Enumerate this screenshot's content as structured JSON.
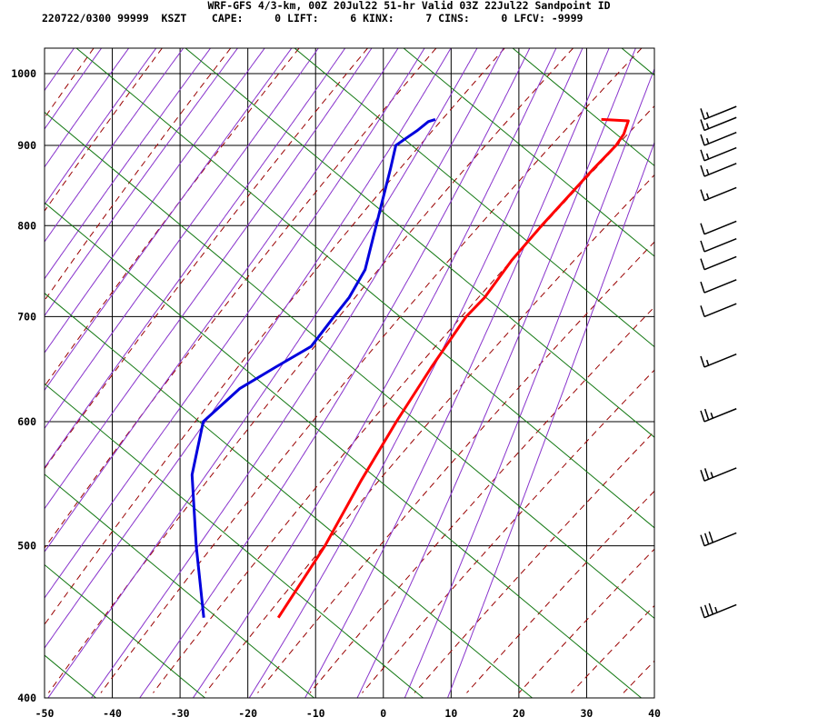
{
  "header": {
    "title": "WRF-GFS 4/3-km, 00Z 20Jul22 51-hr Valid 03Z 22Jul22 Sandpoint ID",
    "stats_line": "220722/0300 99999  KSZT    CAPE:     0 LIFT:     6 KINX:     7 CINS:     0 LFCV: -9999"
  },
  "chart_data": {
    "type": "skew-t",
    "xlim": [
      -50,
      40
    ],
    "plim": [
      1038,
      400
    ],
    "x_ticks": [
      -50,
      -40,
      -30,
      -20,
      -10,
      0,
      10,
      20,
      30,
      40
    ],
    "p_ticks": [
      400,
      500,
      600,
      700,
      800,
      900,
      1000
    ],
    "series": [
      {
        "color": "#ff0000",
        "points": [
          [
            935,
            25
          ],
          [
            933,
            29
          ],
          [
            915,
            28.5
          ],
          [
            900,
            27.5
          ],
          [
            870,
            24.5
          ],
          [
            800,
            17.5
          ],
          [
            760,
            13.5
          ],
          [
            720,
            10
          ],
          [
            700,
            7.5
          ],
          [
            650,
            3
          ],
          [
            600,
            -1.5
          ],
          [
            550,
            -6
          ],
          [
            500,
            -10.5
          ],
          [
            450,
            -16.5
          ]
        ]
      },
      {
        "color": "#0000dd",
        "points": [
          [
            935,
            0.5
          ],
          [
            932,
            -0.5
          ],
          [
            920,
            -2
          ],
          [
            910,
            -3.5
          ],
          [
            900,
            -5
          ],
          [
            870,
            -5.5
          ],
          [
            820,
            -6.5
          ],
          [
            750,
            -8
          ],
          [
            720,
            -10
          ],
          [
            700,
            -12
          ],
          [
            670,
            -15
          ],
          [
            650,
            -20
          ],
          [
            630,
            -25
          ],
          [
            600,
            -30
          ],
          [
            555,
            -31
          ],
          [
            500,
            -29.5
          ],
          [
            450,
            -27.5
          ]
        ]
      }
    ],
    "wind_barbs": [
      {
        "p": 450,
        "knots": 35
      },
      {
        "p": 500,
        "knots": 30
      },
      {
        "p": 550,
        "knots": 25
      },
      {
        "p": 600,
        "knots": 25
      },
      {
        "p": 650,
        "knots": 15
      },
      {
        "p": 700,
        "knots": 10
      },
      {
        "p": 725,
        "knots": 10
      },
      {
        "p": 750,
        "knots": 10
      },
      {
        "p": 770,
        "knots": 10
      },
      {
        "p": 790,
        "knots": 10
      },
      {
        "p": 830,
        "knots": 15
      },
      {
        "p": 860,
        "knots": 15
      },
      {
        "p": 880,
        "knots": 15
      },
      {
        "p": 900,
        "knots": 15
      },
      {
        "p": 920,
        "knots": 15
      },
      {
        "p": 935,
        "knots": 15
      }
    ],
    "colors": {
      "isotherm": "#000000",
      "dry_adiabat": "#990000",
      "moist_adiabat": "#8833cc",
      "mixing_ratio": "#117711"
    }
  }
}
